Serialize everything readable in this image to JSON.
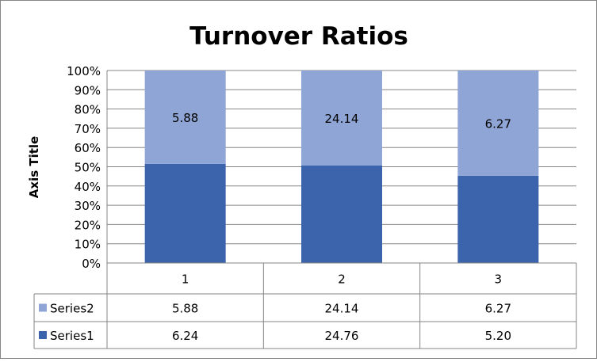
{
  "chart_data": {
    "type": "bar",
    "stacking": "percent",
    "title": "Turnover Ratios",
    "xlabel": "",
    "ylabel": "Axis Title",
    "ylim": [
      0,
      100
    ],
    "yticks": [
      "0%",
      "10%",
      "20%",
      "30%",
      "40%",
      "50%",
      "60%",
      "70%",
      "80%",
      "90%",
      "100%"
    ],
    "categories": [
      "1",
      "2",
      "3"
    ],
    "series": [
      {
        "name": "Series1",
        "values": [
          6.24,
          24.76,
          5.2
        ],
        "labels": [
          "6.24",
          "24.76",
          "5.20"
        ],
        "color": "#3C64AC",
        "data_labels_shown": false
      },
      {
        "name": "Series2",
        "values": [
          5.88,
          24.14,
          6.27
        ],
        "labels": [
          "5.88",
          "24.14",
          "6.27"
        ],
        "color": "#8EA5D5",
        "data_labels_shown": true
      }
    ],
    "grid": true,
    "legend": "data table",
    "data_table": true
  }
}
